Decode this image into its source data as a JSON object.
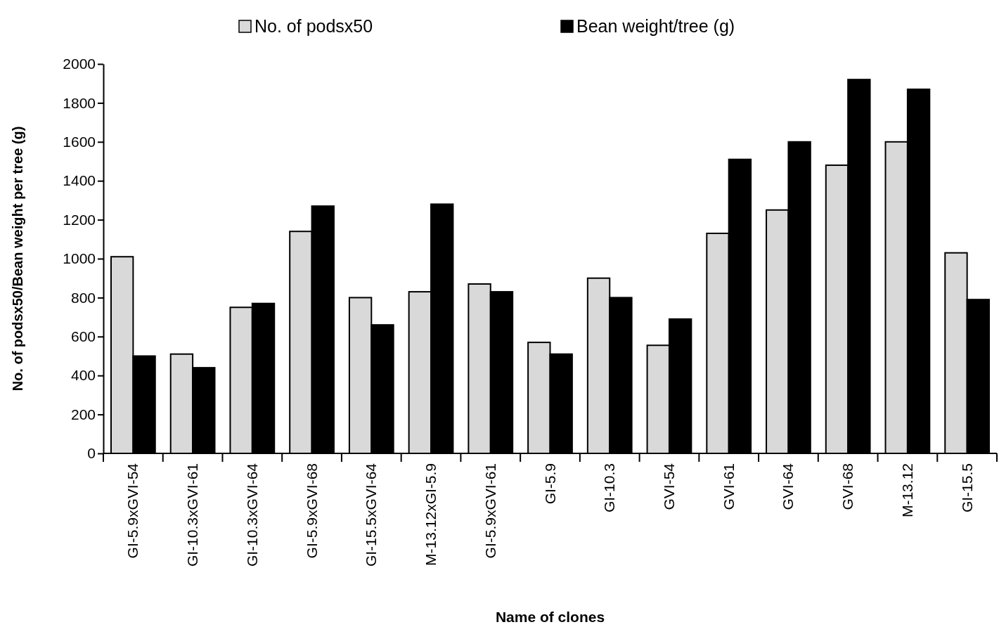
{
  "chart_data": {
    "type": "bar",
    "xlabel": "Name of clones",
    "ylabel": "No. of podsx50/Bean weight per tree (g)",
    "categories": [
      "GI-5.9xGVI-54",
      "GI-10.3xGVI-61",
      "GI-10.3xGVI-64",
      "GI-5.9xGVI-68",
      "GI-15.5xGVI-64",
      "M-13.12xGI-5.9",
      "GI-5.9xGVI-61",
      "GI-5.9",
      "GI-10.3",
      "GVI-54",
      "GVI-61",
      "GVI-64",
      "GVI-68",
      "M-13.12",
      "GI-15.5"
    ],
    "series": [
      {
        "name": "No. of podsx50",
        "color": "#d9d9d9",
        "values": [
          1010,
          510,
          750,
          1140,
          800,
          830,
          870,
          570,
          900,
          555,
          1130,
          1250,
          1480,
          1600,
          1030
        ]
      },
      {
        "name": "Bean weight/tree (g)",
        "color": "#000000",
        "values": [
          500,
          440,
          770,
          1270,
          660,
          1280,
          830,
          510,
          800,
          690,
          1510,
          1600,
          1920,
          1870,
          790
        ]
      }
    ],
    "ylim": [
      0,
      2000
    ],
    "yticks": [
      0,
      200,
      400,
      600,
      800,
      1000,
      1200,
      1400,
      1600,
      1800,
      2000
    ],
    "grid": false,
    "legend": "top"
  }
}
